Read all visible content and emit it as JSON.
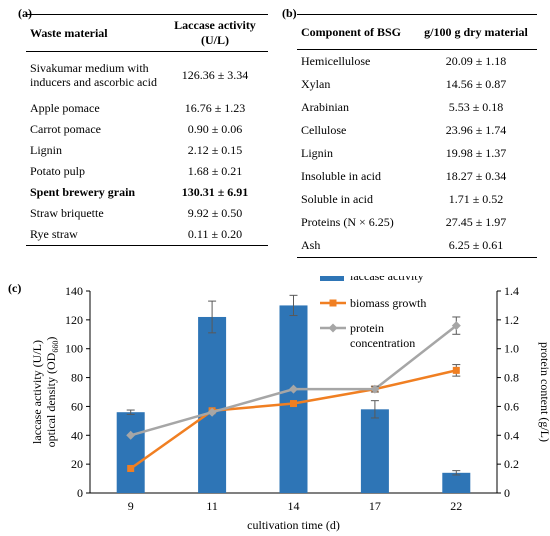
{
  "panel_a": {
    "label": "(a)",
    "header": {
      "col1": "Waste material",
      "col2": "Laccase activity (U/L)"
    },
    "rows": [
      {
        "material": "Sivakumar medium with inducers and ascorbic acid",
        "value": "126.36 ± 3.34",
        "bold": false
      },
      {
        "material": "Apple pomace",
        "value": "16.76 ± 1.23",
        "bold": false
      },
      {
        "material": "Carrot pomace",
        "value": "0.90 ± 0.06",
        "bold": false
      },
      {
        "material": "Lignin",
        "value": "2.12 ± 0.15",
        "bold": false
      },
      {
        "material": "Potato pulp",
        "value": "1.68 ± 0.21",
        "bold": false
      },
      {
        "material": "Spent brewery grain",
        "value": "130.31 ± 6.91",
        "bold": true
      },
      {
        "material": "Straw briquette",
        "value": "9.92 ± 0.50",
        "bold": false
      },
      {
        "material": "Rye straw",
        "value": "0.11 ± 0.20",
        "bold": false
      }
    ]
  },
  "panel_b": {
    "label": "(b)",
    "header": {
      "col1": "Component of BSG",
      "col2": "g/100 g dry material"
    },
    "rows": [
      {
        "component": "Hemicellulose",
        "value": "20.09 ± 1.18",
        "indent": false
      },
      {
        "component": "Xylan",
        "value": "14.56 ± 0.87",
        "indent": false
      },
      {
        "component": "Arabinian",
        "value": "5.53 ± 0.18",
        "indent": false
      },
      {
        "component": "Cellulose",
        "value": "23.96 ± 1.74",
        "indent": false
      },
      {
        "component": "Lignin",
        "value": "19.98 ± 1.37",
        "indent": false
      },
      {
        "component": "Insoluble in acid",
        "value": "18.27 ± 0.34",
        "indent": true
      },
      {
        "component": "Soluble in acid",
        "value": "1.71 ± 0.52",
        "indent": true
      },
      {
        "component": "Proteins (N × 6.25)",
        "value": "27.45 ± 1.97",
        "indent": false
      },
      {
        "component": "Ash",
        "value": "6.25 ± 0.61",
        "indent": false
      }
    ]
  },
  "panel_c_label": "(c)",
  "chart_data": {
    "type": "bar",
    "categories": [
      "9",
      "11",
      "14",
      "17",
      "22"
    ],
    "xlabel": "cultivation time (d)",
    "ylabel_left_line1": "laccase activity (U/L)",
    "ylabel_left_line2_main": "optical density (OD",
    "ylabel_left_line2_sub": "660",
    "ylabel_left_line2_end": ")",
    "ylabel_right": "protein content (g/L)",
    "ylim_left": [
      0,
      140
    ],
    "yticks_left": [
      "0",
      "20",
      "40",
      "60",
      "80",
      "100",
      "120",
      "140"
    ],
    "ylim_right": [
      0,
      1.4
    ],
    "yticks_right": [
      "0",
      "0.2",
      "0.4",
      "0.6",
      "0.8",
      "1.0",
      "1.2",
      "1.4"
    ],
    "grid": false,
    "legend_position": "top-right",
    "series": [
      {
        "name": "laccase activity",
        "kind": "bar",
        "axis": "left",
        "color": "#2e75b6",
        "values": [
          56,
          122,
          130,
          58,
          14
        ],
        "errors": [
          1.5,
          11,
          7,
          6,
          1.5
        ]
      },
      {
        "name": "biomass growth",
        "kind": "line",
        "axis": "left",
        "color": "#f07f22",
        "marker": "square",
        "values": [
          17,
          57,
          62,
          72,
          85
        ],
        "errors": [
          0,
          0,
          0,
          0,
          4
        ]
      },
      {
        "name": "protein concentration",
        "kind": "line",
        "axis": "right",
        "color": "#a6a6a6",
        "marker": "diamond",
        "values": [
          0.4,
          0.56,
          0.72,
          0.72,
          1.16
        ],
        "errors": [
          0,
          0,
          0,
          0.02,
          0.06
        ]
      }
    ]
  }
}
